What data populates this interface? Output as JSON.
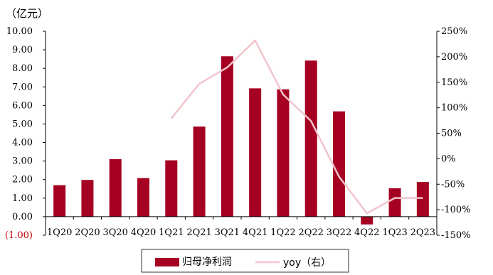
{
  "chart_data": {
    "type": "bar",
    "unit_label": "（亿元）",
    "categories": [
      "1Q20",
      "2Q20",
      "3Q20",
      "4Q20",
      "1Q21",
      "2Q21",
      "3Q21",
      "4Q21",
      "1Q22",
      "2Q22",
      "3Q22",
      "4Q22",
      "1Q23",
      "2Q23"
    ],
    "series": [
      {
        "name": "归母净利润",
        "type": "bar",
        "axis": "left",
        "color": "#a50021",
        "values": [
          1.7,
          1.98,
          3.1,
          2.08,
          3.04,
          4.86,
          8.65,
          6.92,
          6.87,
          8.42,
          5.68,
          -0.42,
          1.53,
          1.87
        ]
      },
      {
        "name": "yoy（右）",
        "type": "line",
        "axis": "right",
        "color": "#f2c4cd",
        "values": [
          null,
          null,
          null,
          null,
          79,
          147,
          179,
          232,
          126,
          74,
          -35,
          -107,
          -77,
          -77
        ]
      }
    ],
    "y_left": {
      "min": -1,
      "max": 10,
      "step": 1,
      "tick_labels": [
        "(1.00)",
        "0.00",
        "1.00",
        "2.00",
        "3.00",
        "4.00",
        "5.00",
        "6.00",
        "7.00",
        "8.00",
        "9.00",
        "10.00"
      ]
    },
    "y_right": {
      "min": -150,
      "max": 250,
      "step": 50,
      "tick_labels": [
        "-150%",
        "-100%",
        "-50%",
        "0%",
        "50%",
        "100%",
        "150%",
        "200%",
        "250%"
      ]
    },
    "grid": false,
    "legend_position": "bottom"
  }
}
